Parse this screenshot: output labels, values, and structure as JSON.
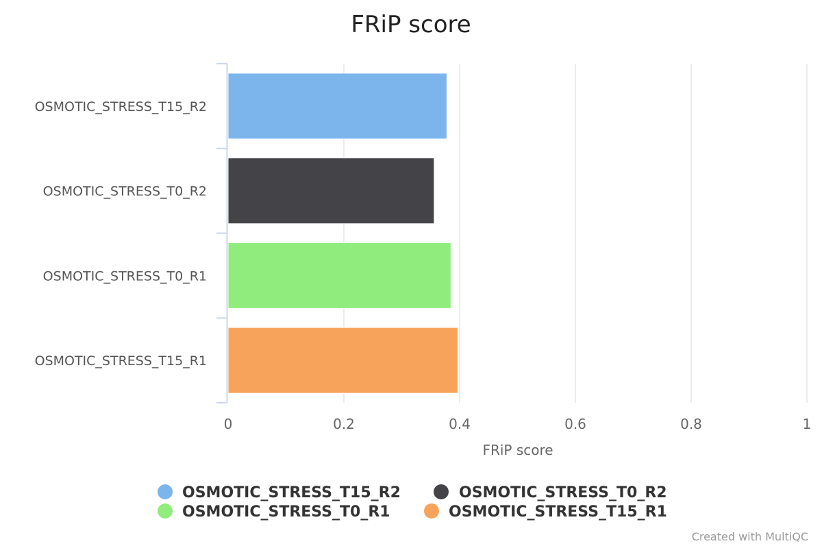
{
  "chart_data": {
    "type": "bar",
    "orientation": "horizontal",
    "title": "FRiP score",
    "xlabel": "FRiP score",
    "ylabel": "",
    "xlim": [
      0,
      1
    ],
    "xticks": [
      0,
      0.2,
      0.4,
      0.6,
      0.8,
      1
    ],
    "xtick_labels": [
      "0",
      "0.2",
      "0.4",
      "0.6",
      "0.8",
      "1"
    ],
    "grid": true,
    "legend_position": "bottom",
    "categories": [
      "OSMOTIC_STRESS_T15_R2",
      "OSMOTIC_STRESS_T0_R2",
      "OSMOTIC_STRESS_T0_R1",
      "OSMOTIC_STRESS_T15_R1"
    ],
    "values": [
      0.378,
      0.356,
      0.385,
      0.397
    ],
    "colors": [
      "#7cb5ec",
      "#434348",
      "#90ed7d",
      "#f7a35c"
    ],
    "legend": [
      "OSMOTIC_STRESS_T15_R2",
      "OSMOTIC_STRESS_T0_R2",
      "OSMOTIC_STRESS_T0_R1",
      "OSMOTIC_STRESS_T15_R1"
    ]
  },
  "credit": "Created with MultiQC"
}
